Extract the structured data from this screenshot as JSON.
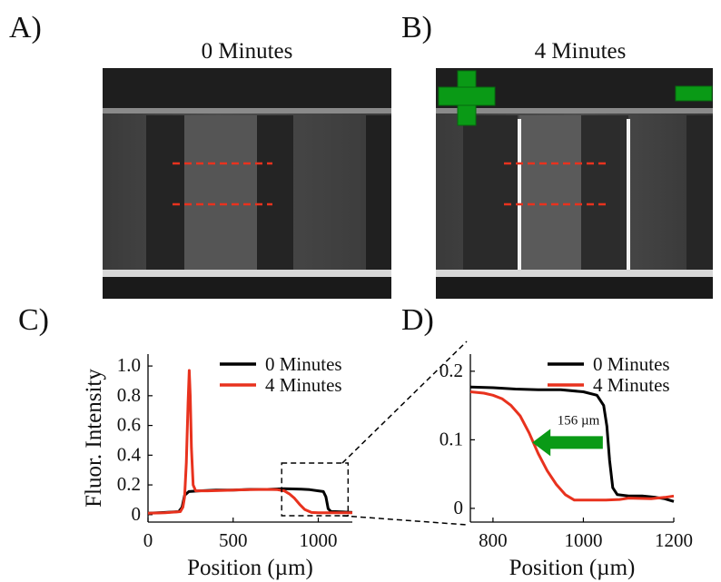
{
  "panels": {
    "a": {
      "letter": "A)",
      "title": "0 Minutes"
    },
    "b": {
      "letter": "B)",
      "title": "4 Minutes"
    },
    "c": {
      "letter": "C)"
    },
    "d": {
      "letter": "D)"
    }
  },
  "electrodes": {
    "positive_color": "#0a9a16",
    "negative_color": "#0a9a16"
  },
  "annotation_colors": {
    "dashed_line": "#e8321e",
    "arrow": "#0a9a16"
  },
  "chart_data": [
    {
      "type": "line",
      "xlabel": "Position (µm)",
      "ylabel": "Fluor. Intensity",
      "xlim": [
        0,
        1200
      ],
      "ylim": [
        -0.05,
        1.08
      ],
      "xticks": [
        0,
        500,
        1000
      ],
      "yticks": [
        0,
        0.2,
        0.4,
        0.6,
        0.8,
        1.0
      ],
      "ytick_labels": [
        "0",
        "0.2",
        "0.4",
        "0.6",
        "0.8",
        "1.0"
      ],
      "grid": false,
      "legend_position": "top-right",
      "series": [
        {
          "name": "0 Minutes",
          "color": "#000000",
          "points": [
            [
              0,
              0.01
            ],
            [
              100,
              0.015
            ],
            [
              180,
              0.02
            ],
            [
              200,
              0.05
            ],
            [
              215,
              0.13
            ],
            [
              240,
              0.155
            ],
            [
              300,
              0.16
            ],
            [
              400,
              0.165
            ],
            [
              500,
              0.165
            ],
            [
              600,
              0.17
            ],
            [
              700,
              0.17
            ],
            [
              800,
              0.175
            ],
            [
              900,
              0.172
            ],
            [
              950,
              0.168
            ],
            [
              1000,
              0.16
            ],
            [
              1030,
              0.155
            ],
            [
              1045,
              0.12
            ],
            [
              1058,
              0.04
            ],
            [
              1075,
              0.02
            ],
            [
              1100,
              0.02
            ],
            [
              1150,
              0.018
            ],
            [
              1200,
              0.015
            ]
          ]
        },
        {
          "name": "4 Minutes",
          "color": "#e8321e",
          "points": [
            [
              0,
              0.01
            ],
            [
              100,
              0.012
            ],
            [
              190,
              0.02
            ],
            [
              205,
              0.05
            ],
            [
              215,
              0.12
            ],
            [
              225,
              0.35
            ],
            [
              235,
              0.75
            ],
            [
              242,
              0.97
            ],
            [
              248,
              0.8
            ],
            [
              255,
              0.45
            ],
            [
              265,
              0.2
            ],
            [
              280,
              0.16
            ],
            [
              350,
              0.16
            ],
            [
              500,
              0.165
            ],
            [
              600,
              0.168
            ],
            [
              700,
              0.17
            ],
            [
              760,
              0.168
            ],
            [
              800,
              0.16
            ],
            [
              830,
              0.14
            ],
            [
              860,
              0.11
            ],
            [
              890,
              0.07
            ],
            [
              920,
              0.035
            ],
            [
              960,
              0.015
            ],
            [
              1000,
              0.012
            ],
            [
              1100,
              0.012
            ],
            [
              1150,
              0.012
            ],
            [
              1200,
              0.013
            ]
          ]
        }
      ]
    },
    {
      "type": "line",
      "xlabel": "Position (µm)",
      "xlim": [
        750,
        1200
      ],
      "ylim": [
        -0.02,
        0.225
      ],
      "xticks": [
        800,
        1000,
        1200
      ],
      "yticks": [
        0,
        0.1,
        0.2
      ],
      "ytick_labels": [
        "0",
        "0.1",
        "0.2"
      ],
      "grid": false,
      "legend_position": "top-right",
      "annotation": {
        "text": "156 µm",
        "arrow_from": 1043,
        "arrow_to": 887,
        "y": 0.096
      },
      "series": [
        {
          "name": "0 Minutes",
          "color": "#000000",
          "points": [
            [
              750,
              0.177
            ],
            [
              800,
              0.176
            ],
            [
              850,
              0.174
            ],
            [
              900,
              0.173
            ],
            [
              950,
              0.173
            ],
            [
              1000,
              0.17
            ],
            [
              1030,
              0.165
            ],
            [
              1045,
              0.15
            ],
            [
              1052,
              0.12
            ],
            [
              1058,
              0.07
            ],
            [
              1065,
              0.03
            ],
            [
              1075,
              0.02
            ],
            [
              1100,
              0.018
            ],
            [
              1130,
              0.018
            ],
            [
              1160,
              0.016
            ],
            [
              1180,
              0.014
            ],
            [
              1200,
              0.01
            ]
          ]
        },
        {
          "name": "4 Minutes",
          "color": "#e8321e",
          "points": [
            [
              750,
              0.17
            ],
            [
              780,
              0.168
            ],
            [
              800,
              0.165
            ],
            [
              820,
              0.16
            ],
            [
              840,
              0.15
            ],
            [
              860,
              0.135
            ],
            [
              880,
              0.11
            ],
            [
              900,
              0.08
            ],
            [
              920,
              0.055
            ],
            [
              940,
              0.035
            ],
            [
              960,
              0.02
            ],
            [
              980,
              0.012
            ],
            [
              1000,
              0.012
            ],
            [
              1050,
              0.012
            ],
            [
              1080,
              0.013
            ],
            [
              1100,
              0.015
            ],
            [
              1150,
              0.014
            ],
            [
              1180,
              0.016
            ],
            [
              1200,
              0.018
            ]
          ]
        }
      ]
    }
  ]
}
